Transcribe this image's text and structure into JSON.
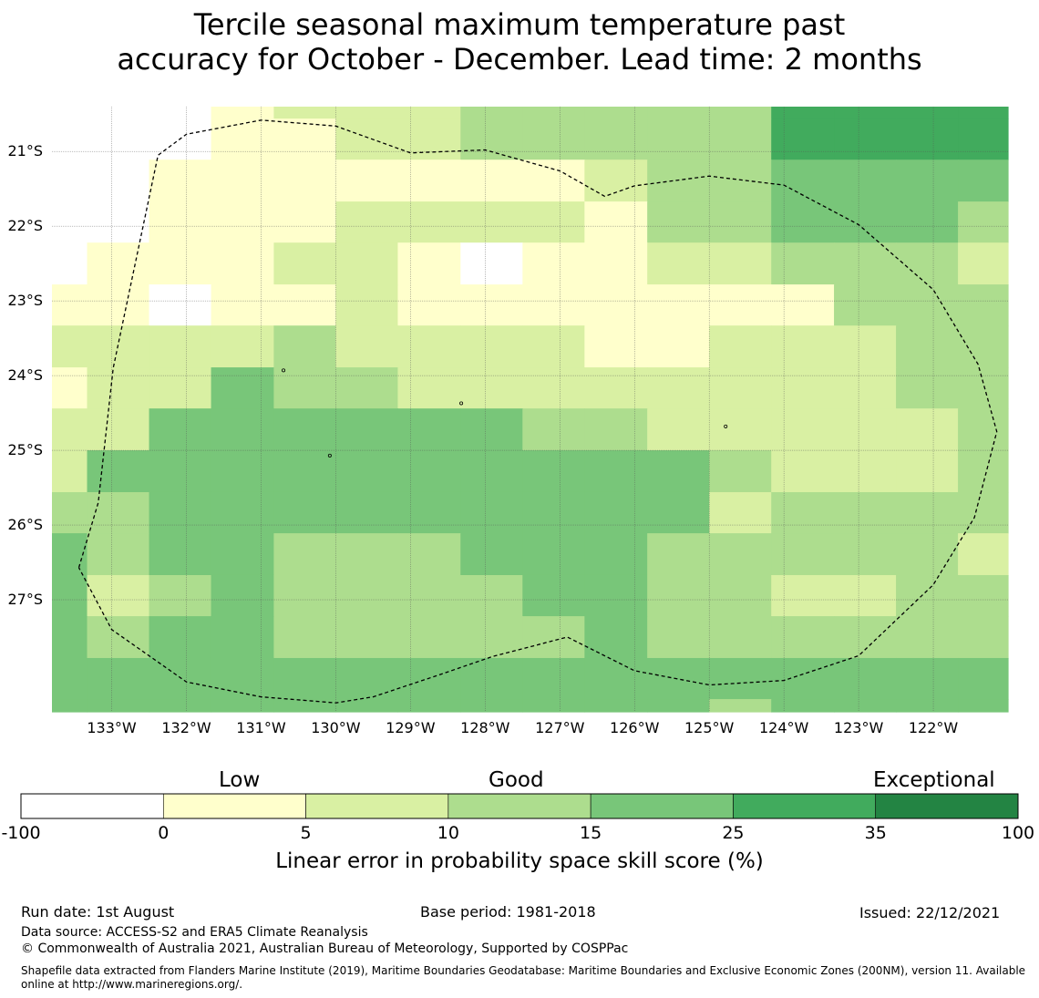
{
  "title": {
    "line1": "Tercile seasonal maximum temperature past",
    "line2": "accuracy for October - December. Lead time: 2 months"
  },
  "map": {
    "lon_range": [
      -133.8,
      -121.0
    ],
    "lat_range": [
      -20.4,
      -28.5
    ],
    "lat_ticks": [
      {
        "value": -21,
        "label": "21°S"
      },
      {
        "value": -22,
        "label": "22°S"
      },
      {
        "value": -23,
        "label": "23°S"
      },
      {
        "value": -24,
        "label": "24°S"
      },
      {
        "value": -25,
        "label": "25°S"
      },
      {
        "value": -26,
        "label": "26°S"
      },
      {
        "value": -27,
        "label": "27°S"
      }
    ],
    "lon_ticks": [
      {
        "value": -133,
        "label": "133°W"
      },
      {
        "value": -132,
        "label": "132°W"
      },
      {
        "value": -131,
        "label": "131°W"
      },
      {
        "value": -130,
        "label": "130°W"
      },
      {
        "value": -129,
        "label": "129°W"
      },
      {
        "value": -128,
        "label": "128°W"
      },
      {
        "value": -127,
        "label": "127°W"
      },
      {
        "value": -126,
        "label": "126°W"
      },
      {
        "value": -125,
        "label": "125°W"
      },
      {
        "value": -124,
        "label": "124°W"
      },
      {
        "value": -123,
        "label": "123°W"
      },
      {
        "value": -122,
        "label": "122°W"
      }
    ],
    "grid_cols_lon": [
      -133.8,
      -133.33,
      -132.5,
      -131.67,
      -130.83,
      -130.0,
      -129.17,
      -128.33,
      -127.5,
      -126.67,
      -125.83,
      -125.0,
      -124.17,
      -123.33,
      -122.5,
      -121.67,
      -121.0
    ],
    "grid_rows_lat": [
      -20.4,
      -20.56,
      -21.11,
      -21.67,
      -22.22,
      -22.78,
      -23.33,
      -23.89,
      -24.44,
      -25.0,
      -25.56,
      -26.11,
      -26.67,
      -27.22,
      -27.78,
      -28.33,
      -28.5
    ],
    "grid_classes": [
      "0001222333335555",
      "0001122333335555",
      "0011111112334444",
      "0011122221334443",
      "0111221011223332",
      "1101121111111333",
      "2222322221122233",
      "1224332222222233",
      "2244444433222223",
      "2444444444432223",
      "3344444444423333",
      "4344333444333332",
      "4234333344332233",
      "4344333334333333",
      "4444444444444444",
      "4444444444434444"
    ],
    "eez_boundary": [
      [
        -133.44,
        -26.57
      ],
      [
        -133.18,
        -25.7
      ],
      [
        -132.98,
        -23.9
      ],
      [
        -132.38,
        -21.05
      ],
      [
        -132.0,
        -20.77
      ],
      [
        -131.0,
        -20.58
      ],
      [
        -130.0,
        -20.66
      ],
      [
        -129.0,
        -21.02
      ],
      [
        -128.0,
        -20.98
      ],
      [
        -127.0,
        -21.26
      ],
      [
        -126.4,
        -21.6
      ],
      [
        -126.0,
        -21.46
      ],
      [
        -125.0,
        -21.33
      ],
      [
        -124.0,
        -21.45
      ],
      [
        -123.0,
        -21.98
      ],
      [
        -122.0,
        -22.85
      ],
      [
        -121.4,
        -23.85
      ],
      [
        -121.15,
        -24.75
      ],
      [
        -121.45,
        -25.9
      ],
      [
        -122.0,
        -26.8
      ],
      [
        -123.0,
        -27.75
      ],
      [
        -124.0,
        -28.08
      ],
      [
        -125.0,
        -28.14
      ],
      [
        -126.0,
        -27.95
      ],
      [
        -126.9,
        -27.5
      ],
      [
        -127.9,
        -27.76
      ],
      [
        -128.6,
        -28.0
      ],
      [
        -129.5,
        -28.3
      ],
      [
        -130.0,
        -28.38
      ],
      [
        -131.0,
        -28.3
      ],
      [
        -132.0,
        -28.1
      ],
      [
        -133.0,
        -27.4
      ],
      [
        -133.44,
        -26.57
      ]
    ],
    "islands": [
      {
        "lon": -128.32,
        "lat": -24.37
      },
      {
        "lon": -130.7,
        "lat": -23.93
      },
      {
        "lon": -130.08,
        "lat": -25.07
      },
      {
        "lon": -124.78,
        "lat": -24.68
      }
    ]
  },
  "colorbar": {
    "ticks": [
      "-100",
      "0",
      "5",
      "10",
      "15",
      "25",
      "35",
      "100"
    ],
    "colors": [
      "#ffffff",
      "#ffffcc",
      "#d9f0a3",
      "#addd8e",
      "#78c679",
      "#41ab5d",
      "#238443"
    ],
    "category_labels": {
      "low": "Low",
      "good": "Good",
      "exceptional": "Exceptional"
    },
    "title": "Linear error in probability space skill score (%)"
  },
  "footer": {
    "run_date": "Run date: 1st August",
    "base_period": "Base period: 1981-2018",
    "issued": "Issued: 22/12/2021",
    "data_source": "Data source: ACCESS-S2 and ERA5 Climate Reanalysis",
    "copyright": "© Commonwealth of Australia 2021, Australian Bureau of Meteorology, Supported by COSPPac",
    "shapefile_line1": "Shapefile data extracted from Flanders Marine Institute (2019), Maritime Boundaries Geodatabase: Maritime Boundaries and Exclusive Economic Zones (200NM), version 11. Available",
    "shapefile_line2": "online at http://www.marineregions.org/."
  }
}
